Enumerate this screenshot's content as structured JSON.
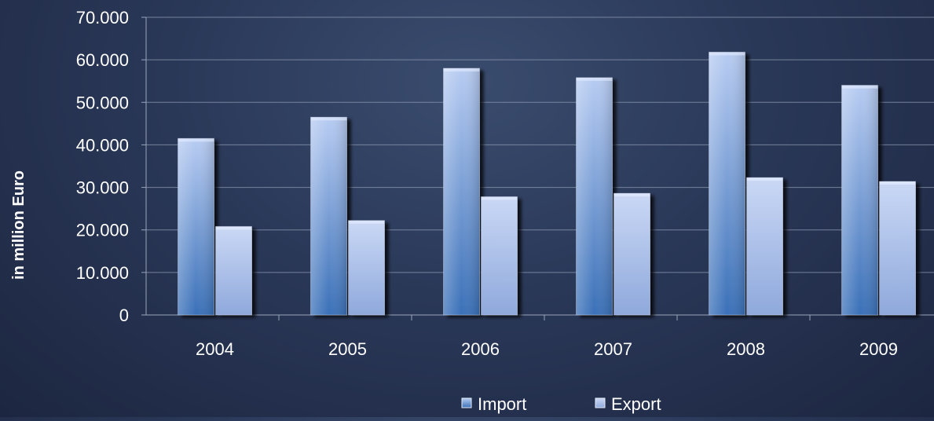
{
  "chart_data": {
    "type": "bar",
    "title": "",
    "xlabel": "",
    "ylabel": "in million Euro",
    "categories": [
      "2004",
      "2005",
      "2006",
      "2007",
      "2008",
      "2009"
    ],
    "series": [
      {
        "name": "Import",
        "values": [
          41500,
          46500,
          58000,
          55800,
          61800,
          54000
        ]
      },
      {
        "name": "Export",
        "values": [
          20800,
          22200,
          27800,
          28600,
          32300,
          31400
        ]
      }
    ],
    "ylim": [
      0,
      70000
    ],
    "yticks": [
      0,
      10000,
      20000,
      30000,
      40000,
      50000,
      60000,
      70000
    ],
    "ytick_labels": [
      "0",
      "10.000",
      "20.000",
      "30.000",
      "40.000",
      "50.000",
      "60.000",
      "70.000"
    ],
    "grid": true,
    "legend_position": "bottom",
    "colors": {
      "import_top": "#b8ccf2",
      "import_bottom": "#3a70b8",
      "export_top": "#cad8f5",
      "export_bottom": "#8fa9dc"
    }
  }
}
